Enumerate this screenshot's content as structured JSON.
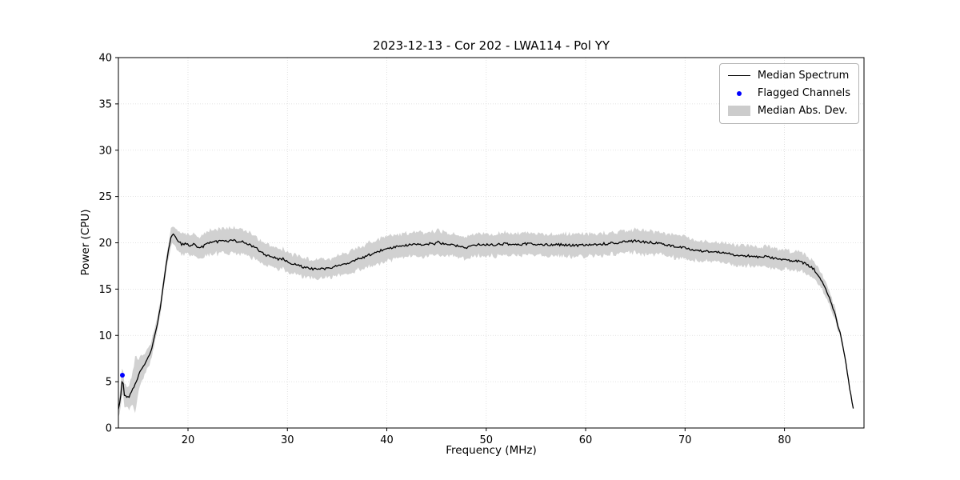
{
  "title": "2023-12-13 - Cor 202 - LWA114 - Pol YY",
  "xlabel": "Frequency (MHz)",
  "ylabel": "Power (CPU)",
  "legend": {
    "median_spectrum": "Median Spectrum",
    "flagged_channels": "Flagged Channels",
    "median_abs_dev": "Median Abs. Dev."
  },
  "colors": {
    "line": "#000000",
    "flagged": "#0000ff",
    "band": "#cccccc",
    "grid": "#d9d9d9",
    "axis": "#000000"
  },
  "chart_data": {
    "type": "line",
    "title": "2023-12-13 - Cor 202 - LWA114 - Pol YY",
    "xlabel": "Frequency (MHz)",
    "ylabel": "Power (CPU)",
    "xlim": [
      13,
      88
    ],
    "ylim": [
      0,
      40
    ],
    "xticks": [
      20,
      30,
      40,
      50,
      60,
      70,
      80
    ],
    "yticks": [
      0,
      5,
      10,
      15,
      20,
      25,
      30,
      35,
      40
    ],
    "grid": true,
    "legend_position": "upper right",
    "noise_amplitude": 0.13,
    "series": [
      {
        "name": "Median Spectrum",
        "type": "line",
        "x": [
          13.0,
          13.2,
          13.4,
          13.6,
          13.9,
          14.2,
          14.5,
          14.7,
          15.0,
          15.3,
          15.6,
          16.0,
          16.4,
          16.8,
          17.2,
          17.6,
          18.0,
          18.3,
          18.6,
          19.0,
          19.4,
          19.8,
          20.2,
          20.6,
          21.0,
          21.5,
          22.0,
          22.5,
          23.0,
          23.5,
          24.0,
          24.5,
          25.0,
          25.5,
          26.0,
          26.5,
          27.0,
          27.5,
          28.0,
          28.5,
          29.0,
          29.5,
          30.0,
          30.5,
          31.0,
          31.5,
          32.0,
          32.5,
          33.0,
          33.5,
          34.0,
          34.5,
          35.0,
          35.5,
          36.0,
          36.5,
          37.0,
          37.5,
          38.0,
          38.5,
          39.0,
          39.5,
          40.0,
          40.5,
          41.0,
          41.5,
          42.0,
          42.5,
          43.0,
          43.5,
          44.0,
          44.5,
          45.0,
          45.2,
          45.5,
          46.0,
          46.5,
          47.0,
          47.5,
          48.0,
          48.5,
          49.0,
          49.5,
          50.0,
          51.0,
          52.0,
          53.0,
          54.0,
          55.0,
          56.0,
          57.0,
          58.0,
          59.0,
          60.0,
          61.0,
          62.0,
          63.0,
          64.0,
          65.0,
          66.0,
          67.0,
          68.0,
          69.0,
          70.0,
          71.0,
          72.0,
          73.0,
          74.0,
          75.0,
          76.0,
          77.0,
          78.0,
          79.0,
          80.0,
          80.5,
          81.0,
          81.5,
          82.0,
          82.5,
          83.0,
          83.5,
          84.0,
          84.5,
          85.0,
          85.3,
          85.6,
          86.0,
          86.3,
          86.6,
          87.0
        ],
        "y": [
          2.0,
          3.0,
          5.5,
          3.6,
          3.2,
          3.6,
          4.3,
          4.8,
          5.6,
          6.3,
          6.8,
          7.6,
          8.8,
          10.5,
          13.0,
          16.0,
          19.0,
          20.6,
          21.0,
          20.2,
          19.8,
          20.0,
          19.6,
          19.9,
          19.5,
          19.6,
          20.0,
          20.2,
          20.1,
          20.3,
          20.2,
          20.3,
          20.1,
          20.2,
          19.9,
          19.6,
          19.3,
          18.9,
          18.6,
          18.5,
          18.2,
          18.3,
          17.9,
          17.7,
          17.6,
          17.4,
          17.3,
          17.2,
          17.1,
          17.2,
          17.2,
          17.3,
          17.5,
          17.6,
          17.8,
          18.0,
          18.2,
          18.4,
          18.6,
          18.8,
          19.0,
          19.2,
          19.4,
          19.5,
          19.6,
          19.7,
          19.7,
          19.8,
          19.8,
          19.8,
          19.9,
          19.9,
          19.9,
          20.3,
          19.9,
          19.8,
          19.8,
          19.7,
          19.6,
          19.5,
          19.6,
          19.8,
          19.8,
          19.8,
          19.8,
          19.9,
          19.8,
          19.9,
          19.8,
          19.8,
          19.8,
          19.8,
          19.7,
          19.8,
          19.8,
          19.9,
          20.0,
          20.1,
          20.2,
          20.1,
          20.0,
          19.8,
          19.6,
          19.5,
          19.2,
          19.1,
          19.0,
          18.9,
          18.7,
          18.6,
          18.5,
          18.5,
          18.3,
          18.2,
          18.1,
          18.0,
          18.0,
          17.8,
          17.5,
          17.1,
          16.4,
          15.4,
          14.2,
          12.6,
          11.4,
          10.2,
          8.2,
          6.2,
          4.0,
          1.5
        ]
      },
      {
        "name": "Median Abs. Dev.",
        "type": "band",
        "mad": [
          0.8,
          1.2,
          1.5,
          1.2,
          1.0,
          1.4,
          2.0,
          3.2,
          1.8,
          1.5,
          1.2,
          1.0,
          0.9,
          0.8,
          0.7,
          0.7,
          0.8,
          0.9,
          1.0,
          1.1,
          1.1,
          1.1,
          1.1,
          1.2,
          1.2,
          1.2,
          1.3,
          1.3,
          1.3,
          1.3,
          1.4,
          1.4,
          1.4,
          1.3,
          1.3,
          1.3,
          1.2,
          1.2,
          1.2,
          1.1,
          1.1,
          1.1,
          1.1,
          1.0,
          1.0,
          1.0,
          1.0,
          1.0,
          1.0,
          1.0,
          1.0,
          1.0,
          1.1,
          1.1,
          1.1,
          1.2,
          1.2,
          1.2,
          1.3,
          1.3,
          1.3,
          1.3,
          1.3,
          1.3,
          1.3,
          1.3,
          1.3,
          1.3,
          1.3,
          1.3,
          1.3,
          1.3,
          1.3,
          1.3,
          1.3,
          1.2,
          1.2,
          1.2,
          1.2,
          1.2,
          1.2,
          1.2,
          1.2,
          1.2,
          1.2,
          1.2,
          1.2,
          1.2,
          1.2,
          1.2,
          1.2,
          1.2,
          1.2,
          1.2,
          1.2,
          1.2,
          1.2,
          1.2,
          1.3,
          1.3,
          1.2,
          1.2,
          1.2,
          1.2,
          1.1,
          1.1,
          1.1,
          1.1,
          1.1,
          1.1,
          1.1,
          1.1,
          1.1,
          1.0,
          1.0,
          1.0,
          1.0,
          1.0,
          0.9,
          0.9,
          0.8,
          0.8,
          0.7,
          0.6,
          0.5,
          0.4,
          0.3,
          0.25,
          0.2,
          0.15
        ]
      }
    ],
    "flagged_points": [
      {
        "x": 13.4,
        "y": 5.7
      }
    ]
  }
}
